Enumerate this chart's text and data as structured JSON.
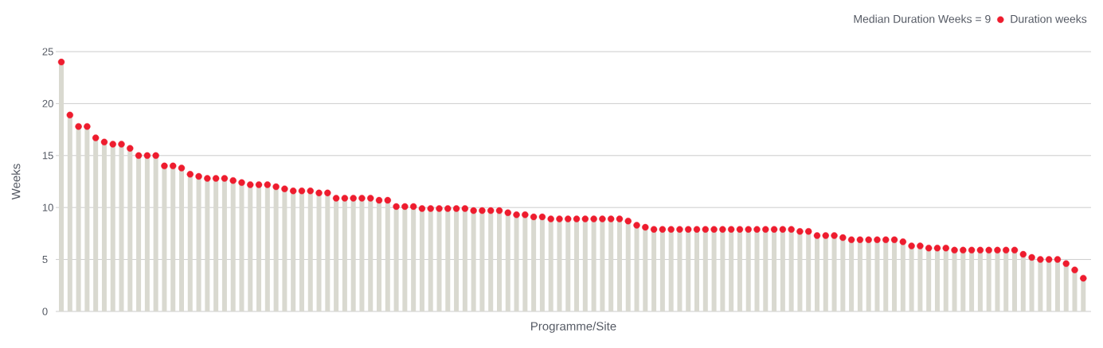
{
  "chart_data": {
    "type": "lollipop",
    "xlabel": "Programme/Site",
    "ylabel": "Weeks",
    "annotations": [
      "Median Duration Weeks = 9"
    ],
    "categories": [
      null,
      null,
      null,
      null,
      null,
      null,
      null,
      null,
      null,
      null,
      null,
      null,
      null,
      null,
      null,
      null,
      null,
      null,
      null,
      null,
      null,
      null,
      null,
      null,
      null,
      null,
      null,
      null,
      null,
      null,
      null,
      null,
      null,
      null,
      null,
      null,
      null,
      null,
      null,
      null,
      null,
      null,
      null,
      null,
      null,
      null,
      null,
      null,
      null,
      null,
      null,
      null,
      null,
      null,
      null,
      null,
      null,
      null,
      null,
      null,
      null,
      null,
      null,
      null,
      null,
      null,
      null,
      null,
      null,
      null,
      null,
      null,
      null,
      null,
      null,
      null,
      null,
      null,
      null,
      null,
      null,
      null,
      null,
      null,
      null,
      null,
      null,
      null,
      null,
      null,
      null,
      null,
      null,
      null,
      null,
      null,
      null,
      null,
      null,
      null,
      null,
      null,
      null,
      null,
      null,
      null,
      null,
      null,
      null,
      null,
      null,
      null,
      null,
      null,
      null,
      null,
      null,
      null,
      null,
      null
    ],
    "series": [
      {
        "name": "Duration weeks",
        "color": "#ee1c2e",
        "values": [
          24.0,
          18.9,
          17.8,
          17.8,
          16.7,
          16.3,
          16.1,
          16.1,
          15.7,
          15.0,
          15.0,
          15.0,
          14.0,
          14.0,
          13.8,
          13.2,
          13.0,
          12.8,
          12.8,
          12.8,
          12.6,
          12.4,
          12.2,
          12.2,
          12.2,
          12.0,
          11.8,
          11.6,
          11.6,
          11.6,
          11.4,
          11.4,
          10.9,
          10.9,
          10.9,
          10.9,
          10.9,
          10.7,
          10.7,
          10.1,
          10.1,
          10.1,
          9.9,
          9.9,
          9.9,
          9.9,
          9.9,
          9.9,
          9.7,
          9.7,
          9.7,
          9.7,
          9.5,
          9.3,
          9.3,
          9.1,
          9.1,
          8.9,
          8.9,
          8.9,
          8.9,
          8.9,
          8.9,
          8.9,
          8.9,
          8.9,
          8.7,
          8.3,
          8.1,
          7.9,
          7.9,
          7.9,
          7.9,
          7.9,
          7.9,
          7.9,
          7.9,
          7.9,
          7.9,
          7.9,
          7.9,
          7.9,
          7.9,
          7.9,
          7.9,
          7.9,
          7.7,
          7.7,
          7.3,
          7.3,
          7.3,
          7.1,
          6.9,
          6.9,
          6.9,
          6.9,
          6.9,
          6.9,
          6.7,
          6.3,
          6.3,
          6.1,
          6.1,
          6.1,
          5.9,
          5.9,
          5.9,
          5.9,
          5.9,
          5.9,
          5.9,
          5.9,
          5.5,
          5.2,
          5.0,
          5.0,
          5.0,
          4.6,
          4.0,
          3.2
        ]
      }
    ],
    "ylim": [
      0,
      25
    ],
    "yticks": [
      0,
      5,
      10,
      15,
      20,
      25
    ],
    "grid": "y",
    "legend": "top right"
  }
}
